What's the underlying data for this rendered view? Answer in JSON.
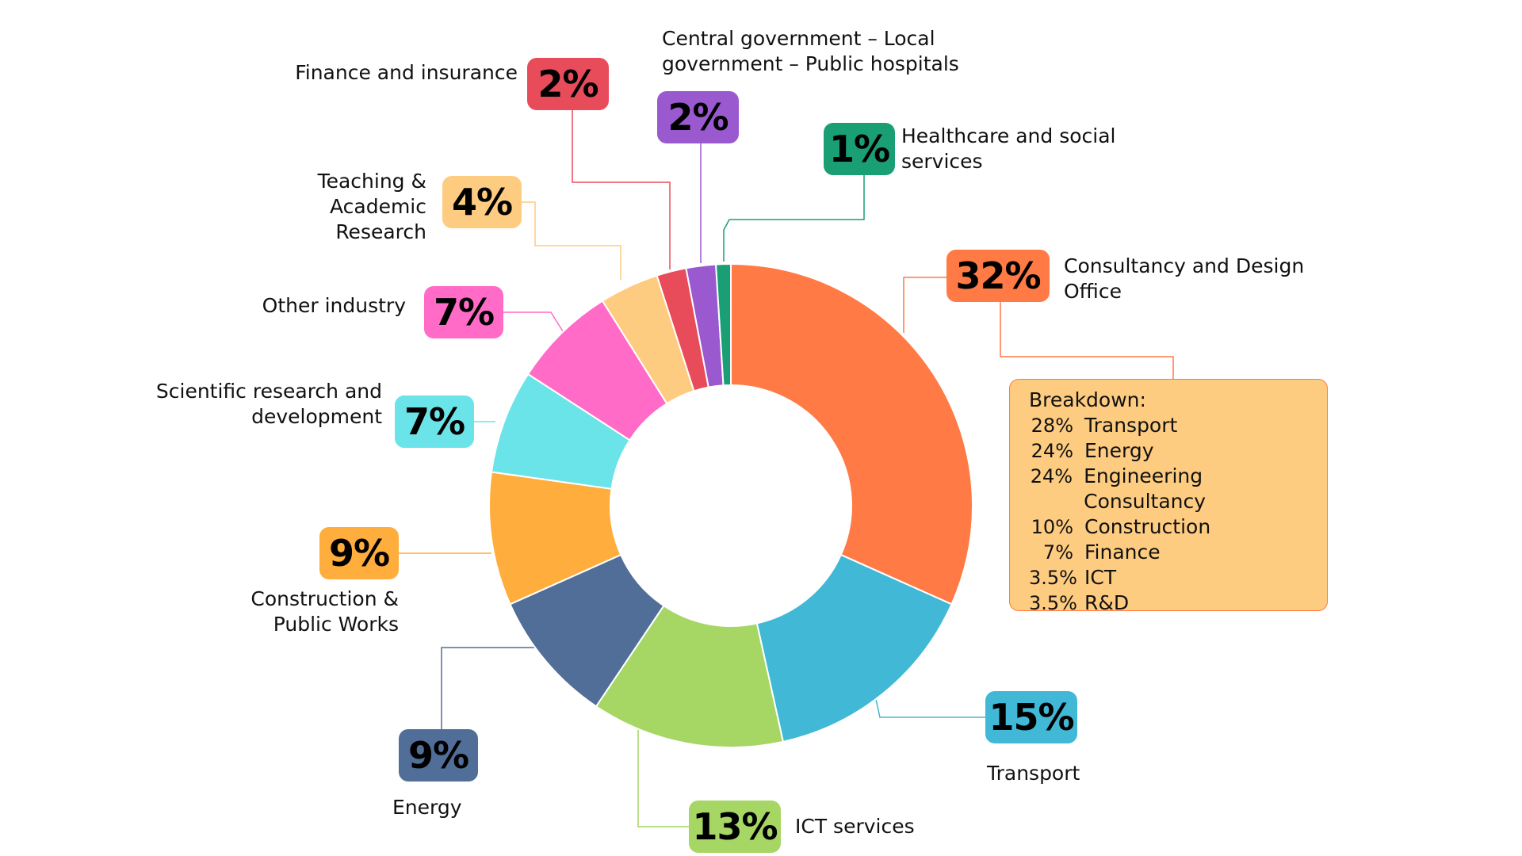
{
  "chart_data": {
    "type": "pie",
    "variant": "donut",
    "unit": "%",
    "slices": [
      {
        "id": "consultancy",
        "name": "Consultancy and Design Office",
        "value": 32,
        "label": "32%",
        "color": "#ff7a45"
      },
      {
        "id": "transport",
        "name": "Transport",
        "value": 15,
        "label": "15%",
        "color": "#40b8d6"
      },
      {
        "id": "ict",
        "name": "ICT services",
        "value": 13,
        "label": "13%",
        "color": "#a6d663"
      },
      {
        "id": "energy",
        "name": "Energy",
        "value": 9,
        "label": "9%",
        "color": "#516e98"
      },
      {
        "id": "construction",
        "name": "Construction & Public Works",
        "value": 9,
        "label": "9%",
        "color": "#ffad3c"
      },
      {
        "id": "scientific",
        "name": "Scientific research and development",
        "value": 7,
        "label": "7%",
        "color": "#6ae4e8"
      },
      {
        "id": "other",
        "name": "Other industry",
        "value": 7,
        "label": "7%",
        "color": "#ff6bc6"
      },
      {
        "id": "teaching",
        "name": "Teaching & Academic Research",
        "value": 4,
        "label": "4%",
        "color": "#fecc80"
      },
      {
        "id": "finance",
        "name": "Finance and insurance",
        "value": 2,
        "label": "2%",
        "color": "#e84b5a"
      },
      {
        "id": "government",
        "name": "Central government – Local government – Public hospitals",
        "value": 2,
        "label": "2%",
        "color": "#9b59d0"
      },
      {
        "id": "healthcare",
        "name": "Healthcare and social services",
        "value": 1,
        "label": "1%",
        "color": "#1a9e74"
      }
    ],
    "breakdown": {
      "parent": "Consultancy and Design Office",
      "title": "Breakdown:",
      "items": [
        {
          "pct": "28%",
          "name": "Transport"
        },
        {
          "pct": "24%",
          "name": "Energy"
        },
        {
          "pct": "24%",
          "name": "Engineering Consultancy"
        },
        {
          "pct": "10%",
          "name": "Construction"
        },
        {
          "pct": "7%",
          "name": "Finance"
        },
        {
          "pct": "3.5%",
          "name": "ICT"
        },
        {
          "pct": "3.5%",
          "name": "R&D"
        }
      ]
    }
  }
}
